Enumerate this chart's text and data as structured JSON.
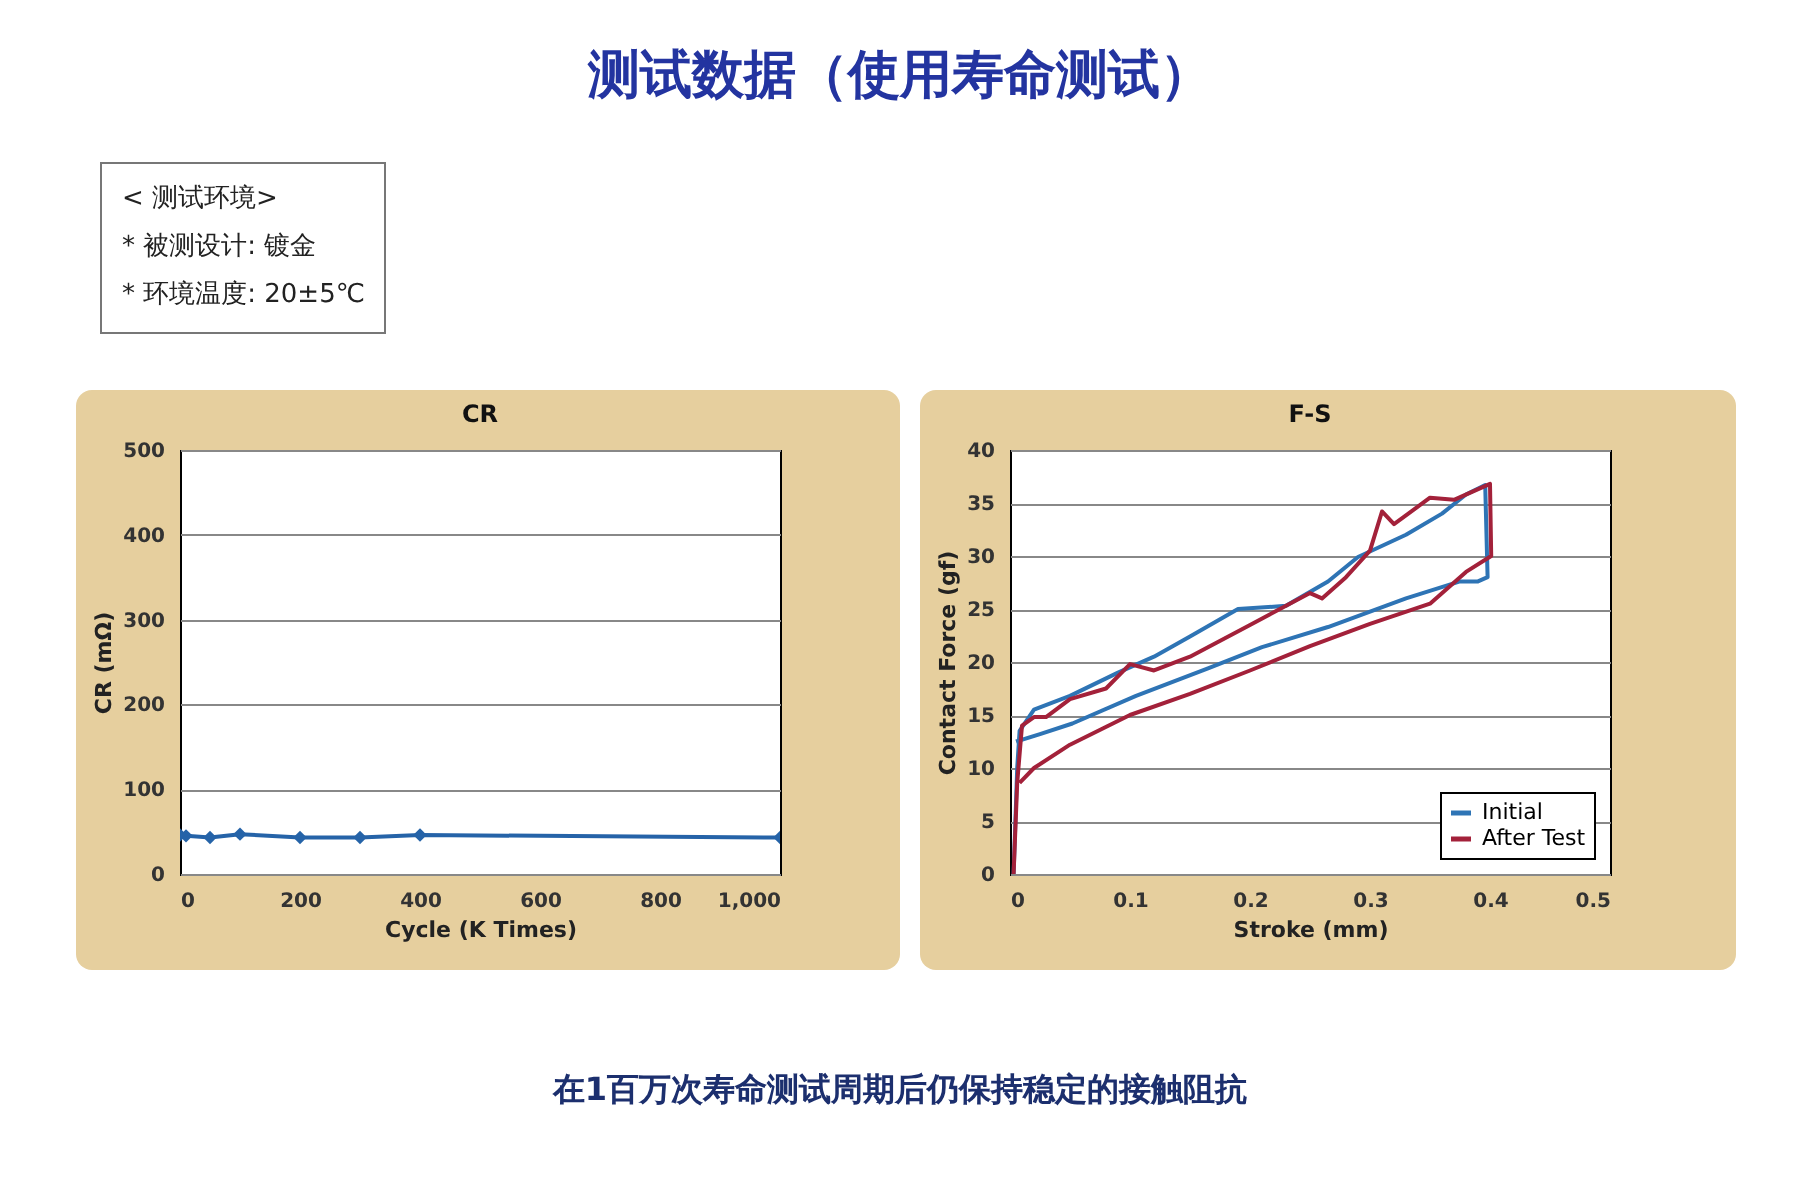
{
  "chart_data": [
    {
      "type": "other",
      "title": "测试数据（使用寿命测试）",
      "annotations": [
        "< 测试环境>",
        "* 被测设计: 镀金",
        "* 环境温度: 20±5℃"
      ]
    },
    {
      "type": "line",
      "title": "CR",
      "xlabel": "Cycle (K Times)",
      "ylabel": "CR (mΩ)",
      "x": [
        0,
        10,
        50,
        100,
        200,
        300,
        400,
        1000
      ],
      "series": [
        {
          "color": "#2563a8",
          "values": [
            46,
            45,
            43,
            47,
            43,
            43,
            46,
            43
          ]
        }
      ],
      "xlim": [
        0,
        1000
      ],
      "ylim": [
        0,
        500
      ],
      "xticks": [
        0,
        200,
        400,
        600,
        800,
        {
          "value": 1000,
          "label": "1,000"
        }
      ],
      "yticks": [
        0,
        100,
        200,
        300,
        400,
        500
      ],
      "grid": "y",
      "marker": "diamond"
    },
    {
      "type": "line",
      "title": "F-S",
      "xlabel": "Stroke (mm)",
      "ylabel": "Contact Force (gf)",
      "xlim": [
        0,
        0.5
      ],
      "ylim": [
        0,
        40
      ],
      "xticks": [
        0,
        0.1,
        0.2,
        0.3,
        0.4,
        0.5
      ],
      "yticks": [
        0,
        5,
        10,
        15,
        20,
        25,
        30,
        35,
        40
      ],
      "grid": "y",
      "legend": "bottom right",
      "series": [
        {
          "name": "Initial",
          "color": "#2e74b5",
          "x": [
            0.003,
            0.006,
            0.008,
            0.02,
            0.05,
            0.09,
            0.12,
            0.15,
            0.19,
            0.23,
            0.265,
            0.29,
            0.33,
            0.36,
            0.38,
            0.396,
            0.398,
            0.39,
            0.375,
            0.33,
            0.265,
            0.21,
            0.165,
            0.105,
            0.052,
            0.025,
            0.005
          ],
          "values": [
            0,
            10,
            13.5,
            15.5,
            16.8,
            19,
            20.5,
            22.4,
            25,
            25.3,
            27.6,
            29.9,
            32,
            34,
            35.8,
            36.7,
            28,
            27.6,
            27.6,
            26,
            23.3,
            21.4,
            19.4,
            16.8,
            14.2,
            13.2,
            12.5
          ]
        },
        {
          "name": "After Test",
          "color": "#a3213a",
          "x": [
            0.003,
            0.006,
            0.01,
            0.02,
            0.03,
            0.05,
            0.08,
            0.1,
            0.12,
            0.15,
            0.2,
            0.25,
            0.26,
            0.28,
            0.3,
            0.31,
            0.32,
            0.35,
            0.37,
            0.4,
            0.401,
            0.38,
            0.35,
            0.3,
            0.25,
            0.2,
            0.15,
            0.1,
            0.05,
            0.02,
            0.008
          ],
          "values": [
            0,
            8.6,
            14,
            14.8,
            14.8,
            16.5,
            17.5,
            19.8,
            19.2,
            20.5,
            23.5,
            26.5,
            26,
            28,
            30.5,
            34.2,
            33,
            35.5,
            35.3,
            36.8,
            30,
            28.5,
            25.5,
            23.6,
            21.5,
            19.2,
            17,
            15,
            12.2,
            10,
            8.6
          ]
        }
      ]
    },
    {
      "type": "other",
      "annotations": [
        "在1百万次寿命测试周期后仍保持稳定的接触阻抗"
      ]
    }
  ]
}
